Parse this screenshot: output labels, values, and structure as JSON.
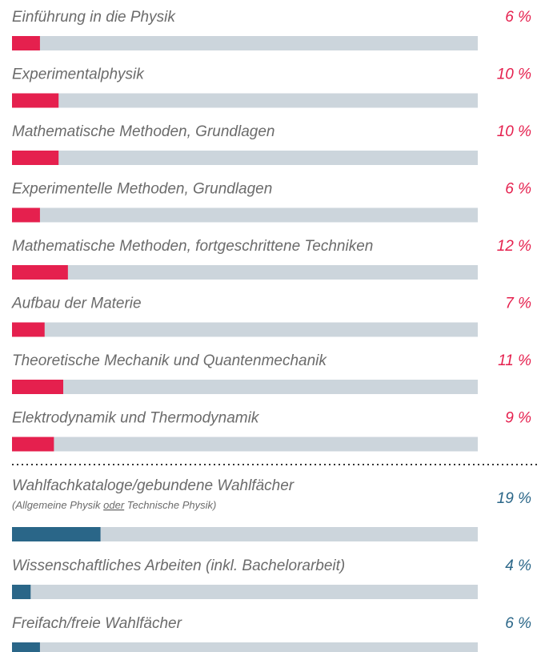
{
  "chart_data": {
    "type": "bar",
    "orientation": "horizontal",
    "categories": [
      "Einführung in die Physik",
      "Experimentalphysik",
      "Mathematische Methoden, Grundlagen",
      "Experimentelle Methoden, Grundlagen",
      "Mathematische Methoden, fortgeschrittene Techniken",
      "Aufbau der Materie",
      "Theoretische Mechanik und Quantenmechanik",
      "Elektrodynamik und Thermodynamik",
      "Wahlfachkataloge/gebundene Wahlfächer",
      "Wissenschaftliches Arbeiten (inkl. Bachelorarbeit)",
      "Freifach/freie Wahlfächer"
    ],
    "category_notes": [
      null,
      null,
      null,
      null,
      null,
      null,
      null,
      null,
      [
        {
          "text": "(Allgemeine Physik "
        },
        {
          "text": "oder",
          "underline": true
        },
        {
          "text": " Technische Physik)"
        }
      ],
      null,
      null
    ],
    "values": [
      6,
      10,
      10,
      6,
      12,
      7,
      11,
      9,
      19,
      4,
      6
    ],
    "value_labels": [
      "6 %",
      "10 %",
      "10 %",
      "6 %",
      "12 %",
      "7 %",
      "11 %",
      "9 %",
      "19 %",
      "4 %",
      "6 %"
    ],
    "colors": [
      "#e5204e",
      "#e5204e",
      "#e5204e",
      "#e5204e",
      "#e5204e",
      "#e5204e",
      "#e5204e",
      "#e5204e",
      "#2a6688",
      "#2a6688",
      "#2a6688"
    ],
    "track_color": "#ccd5dc",
    "xlim": [
      0,
      100
    ]
  }
}
